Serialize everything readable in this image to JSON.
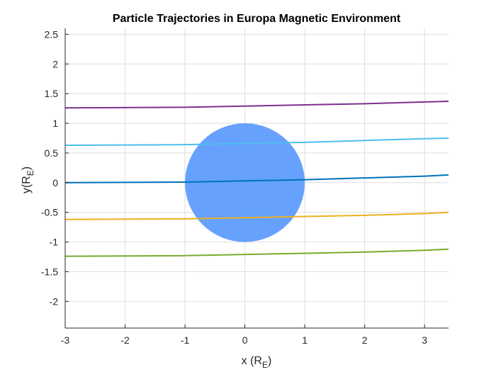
{
  "chart_data": {
    "type": "line",
    "title": "Particle Trajectories in Europa Magnetic Environment",
    "xlabel": {
      "main": "x (R",
      "sub": "E",
      "close": ")"
    },
    "ylabel": {
      "main": "y(R",
      "sub": "E",
      "close": ")"
    },
    "xlim": [
      -3,
      3.4
    ],
    "ylim": [
      -2.45,
      2.6
    ],
    "xticks": [
      -3,
      -2,
      -1,
      0,
      1,
      2,
      3
    ],
    "yticks": [
      -2,
      -1.5,
      -1,
      -0.5,
      0,
      0.5,
      1,
      1.5,
      2,
      2.5
    ],
    "xtick_labels": [
      "-3",
      "-2",
      "-1",
      "0",
      "1",
      "2",
      "3"
    ],
    "ytick_labels": [
      "-2",
      "-1.5",
      "-1",
      "-0.5",
      "0",
      "0.5",
      "1",
      "1.5",
      "2",
      "2.5"
    ],
    "grid": true,
    "body": {
      "center": [
        0,
        0
      ],
      "radius": 1.0,
      "color": "#66a1fd"
    },
    "series": [
      {
        "color": "#7e2f8e",
        "x": [
          -3,
          -1,
          0,
          1,
          2,
          3,
          3.4
        ],
        "y": [
          1.26,
          1.27,
          1.29,
          1.31,
          1.33,
          1.36,
          1.37
        ]
      },
      {
        "color": "#4dbeee",
        "x": [
          -3,
          -1,
          0,
          1,
          2,
          3,
          3.4
        ],
        "y": [
          0.63,
          0.64,
          0.66,
          0.68,
          0.71,
          0.74,
          0.75
        ]
      },
      {
        "color": "#0072bd",
        "x": [
          -3,
          -1,
          0,
          1,
          2,
          3,
          3.4
        ],
        "y": [
          0.0,
          0.01,
          0.03,
          0.05,
          0.08,
          0.11,
          0.13
        ]
      },
      {
        "color": "#edb120",
        "x": [
          -3,
          -1,
          0,
          1,
          2,
          3,
          3.4
        ],
        "y": [
          -0.62,
          -0.61,
          -0.59,
          -0.57,
          -0.55,
          -0.52,
          -0.5
        ]
      },
      {
        "color": "#77ac30",
        "x": [
          -3,
          -1,
          0,
          1,
          2,
          3,
          3.4
        ],
        "y": [
          -1.24,
          -1.23,
          -1.21,
          -1.19,
          -1.17,
          -1.14,
          -1.12
        ]
      }
    ]
  }
}
